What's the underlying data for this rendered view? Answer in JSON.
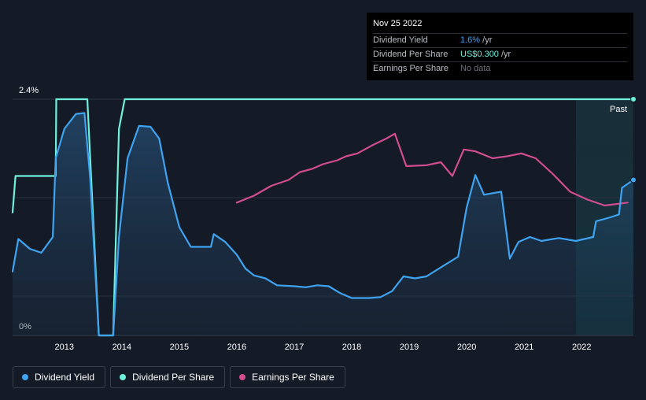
{
  "tooltip": {
    "date": "Nov 25 2022",
    "rows": [
      {
        "label": "Dividend Yield",
        "value": "1.6%",
        "unit": " /yr"
      },
      {
        "label": "Dividend Per Share",
        "value": "US$0.300",
        "unit": " /yr"
      },
      {
        "label": "Earnings Per Share",
        "value": "No data",
        "unit": ""
      }
    ]
  },
  "past_label": "Past",
  "legend": [
    {
      "label": "Dividend Yield",
      "color": "#3ea3f0"
    },
    {
      "label": "Dividend Per Share",
      "color": "#6ff0dc"
    },
    {
      "label": "Earnings Per Share",
      "color": "#d14d8f"
    }
  ],
  "chart_data": {
    "type": "line",
    "xlim": [
      2012.1,
      2022.9
    ],
    "ylim": [
      0,
      2.4
    ],
    "y_ticks": [
      {
        "value": 2.4,
        "label": "2.4%"
      },
      {
        "value": 0,
        "label": "0%"
      }
    ],
    "y_gridlines": [
      2.4,
      1.4,
      0.4
    ],
    "x_ticks": [
      2013,
      2014,
      2015,
      2016,
      2017,
      2018,
      2019,
      2020,
      2021,
      2022
    ],
    "x_tick_labels": [
      "2013",
      "2014",
      "2015",
      "2016",
      "2017",
      "2018",
      "2019",
      "2020",
      "2021",
      "2022"
    ],
    "past_region_start": 2021.9,
    "series": [
      {
        "name": "Dividend Yield",
        "color": "#3ea3f0",
        "fill": true,
        "points": [
          [
            2012.1,
            0.65
          ],
          [
            2012.2,
            0.98
          ],
          [
            2012.4,
            0.88
          ],
          [
            2012.6,
            0.84
          ],
          [
            2012.8,
            1.0
          ],
          [
            2012.85,
            1.8
          ],
          [
            2013.0,
            2.1
          ],
          [
            2013.2,
            2.25
          ],
          [
            2013.35,
            2.26
          ],
          [
            2013.45,
            1.6
          ],
          [
            2013.6,
            0.0
          ],
          [
            2013.85,
            0.0
          ],
          [
            2013.95,
            1.0
          ],
          [
            2014.1,
            1.8
          ],
          [
            2014.3,
            2.13
          ],
          [
            2014.5,
            2.12
          ],
          [
            2014.65,
            2.0
          ],
          [
            2014.8,
            1.55
          ],
          [
            2015.0,
            1.1
          ],
          [
            2015.2,
            0.9
          ],
          [
            2015.4,
            0.9
          ],
          [
            2015.55,
            0.9
          ],
          [
            2015.6,
            1.03
          ],
          [
            2015.8,
            0.95
          ],
          [
            2016.0,
            0.82
          ],
          [
            2016.15,
            0.68
          ],
          [
            2016.3,
            0.61
          ],
          [
            2016.5,
            0.58
          ],
          [
            2016.7,
            0.51
          ],
          [
            2017.0,
            0.5
          ],
          [
            2017.2,
            0.49
          ],
          [
            2017.4,
            0.51
          ],
          [
            2017.6,
            0.5
          ],
          [
            2017.8,
            0.43
          ],
          [
            2018.0,
            0.38
          ],
          [
            2018.3,
            0.38
          ],
          [
            2018.5,
            0.39
          ],
          [
            2018.7,
            0.45
          ],
          [
            2018.9,
            0.6
          ],
          [
            2019.1,
            0.58
          ],
          [
            2019.3,
            0.6
          ],
          [
            2019.6,
            0.71
          ],
          [
            2019.85,
            0.8
          ],
          [
            2020.0,
            1.3
          ],
          [
            2020.15,
            1.63
          ],
          [
            2020.3,
            1.43
          ],
          [
            2020.6,
            1.46
          ],
          [
            2020.75,
            0.78
          ],
          [
            2020.9,
            0.95
          ],
          [
            2021.1,
            1.0
          ],
          [
            2021.3,
            0.96
          ],
          [
            2021.6,
            0.99
          ],
          [
            2021.9,
            0.96
          ],
          [
            2022.2,
            1.0
          ],
          [
            2022.25,
            1.16
          ],
          [
            2022.5,
            1.2
          ],
          [
            2022.65,
            1.23
          ],
          [
            2022.7,
            1.5
          ],
          [
            2022.9,
            1.58
          ]
        ]
      },
      {
        "name": "Dividend Per Share",
        "color": "#6ff0dc",
        "fill": false,
        "points": [
          [
            2012.1,
            1.25
          ],
          [
            2012.15,
            1.62
          ],
          [
            2012.85,
            1.62
          ],
          [
            2012.86,
            2.4
          ],
          [
            2013.4,
            2.4
          ],
          [
            2013.5,
            1.2
          ],
          [
            2013.6,
            0.0
          ],
          [
            2013.85,
            0.0
          ],
          [
            2013.95,
            2.1
          ],
          [
            2014.05,
            2.4
          ],
          [
            2022.9,
            2.4
          ]
        ]
      },
      {
        "name": "Earnings Per Share",
        "color": "#d14d8f",
        "fill": false,
        "points": [
          [
            2016.0,
            1.35
          ],
          [
            2016.3,
            1.42
          ],
          [
            2016.6,
            1.52
          ],
          [
            2016.9,
            1.58
          ],
          [
            2017.1,
            1.66
          ],
          [
            2017.3,
            1.69
          ],
          [
            2017.5,
            1.74
          ],
          [
            2017.75,
            1.78
          ],
          [
            2017.9,
            1.82
          ],
          [
            2018.1,
            1.85
          ],
          [
            2018.35,
            1.93
          ],
          [
            2018.6,
            2.0
          ],
          [
            2018.75,
            2.05
          ],
          [
            2018.95,
            1.72
          ],
          [
            2019.3,
            1.73
          ],
          [
            2019.55,
            1.76
          ],
          [
            2019.75,
            1.62
          ],
          [
            2019.95,
            1.89
          ],
          [
            2020.15,
            1.87
          ],
          [
            2020.45,
            1.8
          ],
          [
            2020.7,
            1.82
          ],
          [
            2020.95,
            1.85
          ],
          [
            2021.2,
            1.8
          ],
          [
            2021.5,
            1.64
          ],
          [
            2021.8,
            1.46
          ],
          [
            2022.1,
            1.38
          ],
          [
            2022.4,
            1.32
          ],
          [
            2022.8,
            1.35
          ]
        ]
      }
    ]
  }
}
